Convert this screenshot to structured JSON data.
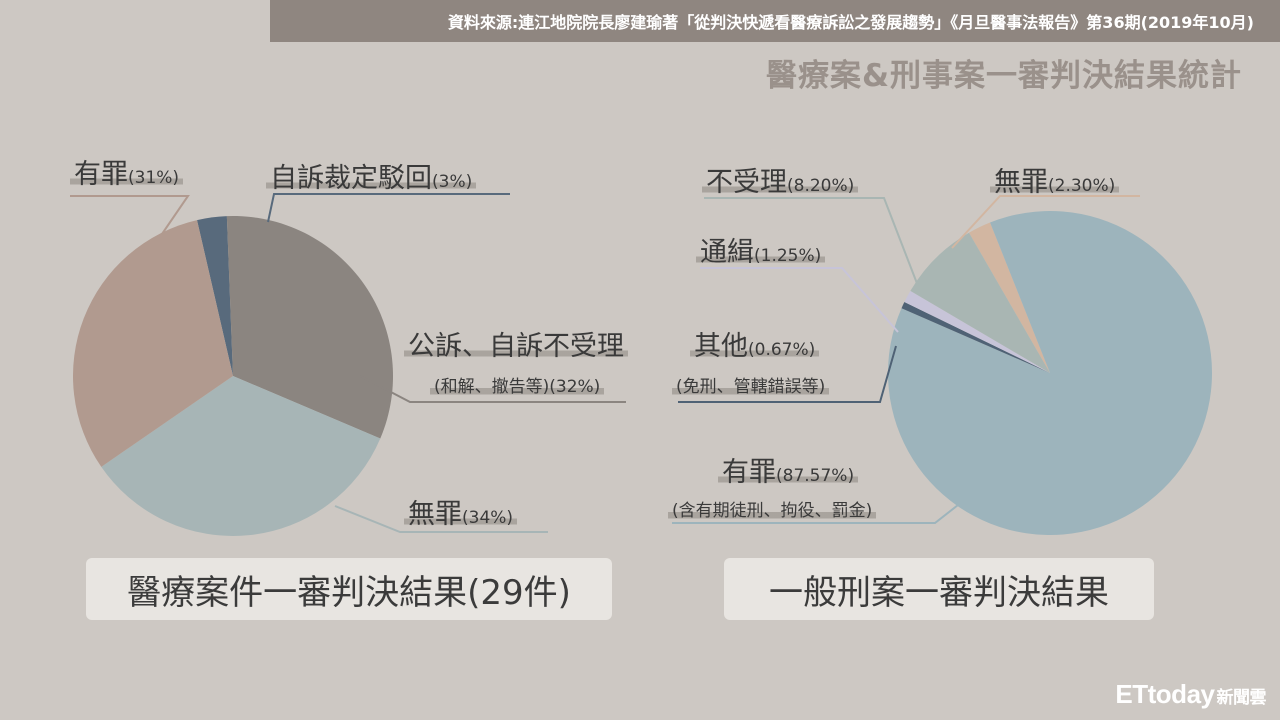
{
  "source": "資料來源:連江地院院長廖建瑜著「從判決快遞看醫療訴訟之發展趨勢」《月旦醫事法報告》第36期(2019年10月)",
  "title": "醫療案&刑事案一審判決結果統計",
  "logo": {
    "brand": "ETtoday",
    "suffix": "新聞雲"
  },
  "chart_data": [
    {
      "type": "pie",
      "title": "醫療案件一審判決結果(29件)",
      "labels": [
        {
          "name": "有罪",
          "pct_text": "(31%)",
          "value": 31,
          "color": "#b19a8f"
        },
        {
          "name": "自訴裁定駁回",
          "pct_text": "(3%)",
          "value": 3,
          "color": "#586a7c"
        },
        {
          "name": "公訴、自訴不受理",
          "pct_text": "(和解、撤告等)(32%)",
          "value": 32,
          "color": "#8b8580"
        },
        {
          "name": "無罪",
          "pct_text": "(34%)",
          "value": 34,
          "color": "#a7b5b6"
        }
      ]
    },
    {
      "type": "pie",
      "title": "一般刑案一審判決結果",
      "labels": [
        {
          "name": "無罪",
          "pct_text": "(2.30%)",
          "value": 2.3,
          "color": "#d2b6a1"
        },
        {
          "name": "有罪",
          "pct_text": "(87.57%)",
          "sub": "(含有期徒刑、拘役、罰金)",
          "value": 87.57,
          "color": "#9db4bc"
        },
        {
          "name": "其他",
          "pct_text": "(0.67%)",
          "sub": "(免刑、管轄錯誤等)",
          "value": 0.67,
          "color": "#4f6275"
        },
        {
          "name": "通緝",
          "pct_text": "(1.25%)",
          "value": 1.25,
          "color": "#c7c4d8"
        },
        {
          "name": "不受理",
          "pct_text": "(8.20%)",
          "value": 8.2,
          "color": "#a9b6b3"
        }
      ]
    }
  ]
}
